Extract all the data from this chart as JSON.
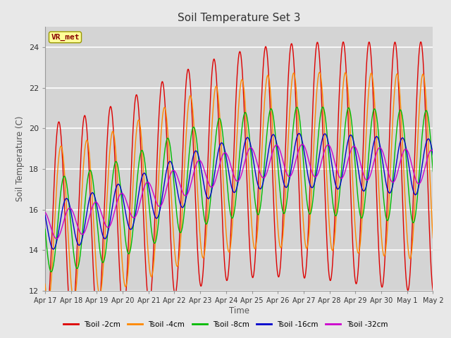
{
  "title": "Soil Temperature Set 3",
  "xlabel": "Time",
  "ylabel": "Soil Temperature (C)",
  "ylim": [
    12,
    25
  ],
  "background_color": "#e8e8e8",
  "plot_bg_color": "#d4d4d4",
  "grid_color": "#ffffff",
  "annotation_text": "VR_met",
  "annotation_bg": "#ffff99",
  "annotation_border": "#999900",
  "annotation_text_color": "#880000",
  "series": [
    {
      "label": "Tsoil -2cm",
      "color": "#dd0000"
    },
    {
      "label": "Tsoil -4cm",
      "color": "#ff8800"
    },
    {
      "label": "Tsoil -8cm",
      "color": "#00bb00"
    },
    {
      "label": "Tsoil -16cm",
      "color": "#0000cc"
    },
    {
      "label": "Tsoil -32cm",
      "color": "#cc00cc"
    }
  ],
  "xtick_labels": [
    "Apr 17",
    "Apr 18",
    "Apr 19",
    "Apr 20",
    "Apr 21",
    "Apr 22",
    "Apr 23",
    "Apr 24",
    "Apr 25",
    "Apr 26",
    "Apr 27",
    "Apr 28",
    "Apr 29",
    "Apr 30",
    "May 1",
    "May 2"
  ],
  "ytick_labels": [
    12,
    14,
    16,
    18,
    20,
    22,
    24
  ]
}
